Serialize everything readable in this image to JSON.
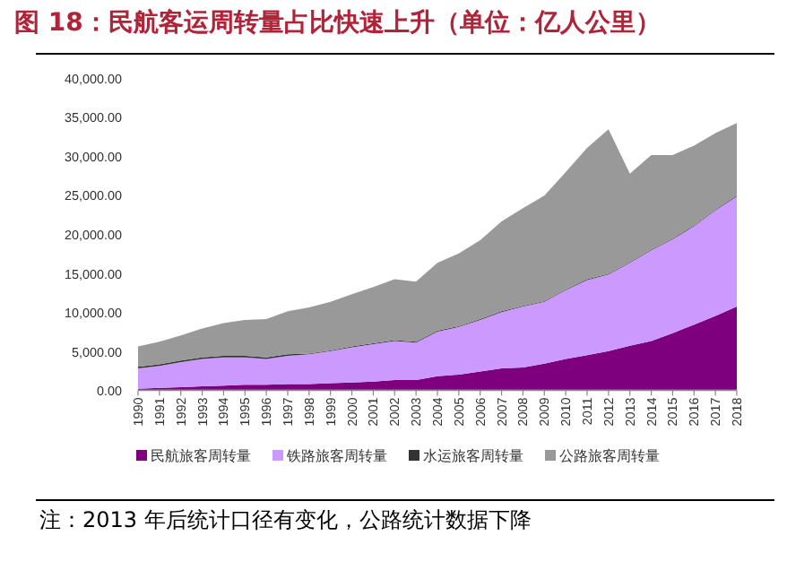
{
  "chart_data": {
    "type": "area",
    "stacked": true,
    "title": "图 18：民航客运周转量占比快速上升（单位：亿人公里）",
    "categories": [
      "1990",
      "1991",
      "1992",
      "1993",
      "1994",
      "1995",
      "1996",
      "1997",
      "1998",
      "1999",
      "2000",
      "2001",
      "2002",
      "2003",
      "2004",
      "2005",
      "2006",
      "2007",
      "2008",
      "2009",
      "2010",
      "2011",
      "2012",
      "2013",
      "2014",
      "2015",
      "2016",
      "2017",
      "2018"
    ],
    "series": [
      {
        "name": "民航旅客周转量",
        "color": "#7f007f",
        "values": [
          200,
          300,
          400,
          500,
          600,
          700,
          700,
          800,
          800,
          900,
          1000,
          1100,
          1300,
          1300,
          1800,
          2000,
          2400,
          2800,
          2900,
          3400,
          4000,
          4500,
          5000,
          5700,
          6300,
          7300,
          8400,
          9500,
          10700
        ]
      },
      {
        "name": "铁路旅客周转量",
        "color": "#cc99ff",
        "values": [
          2600,
          2800,
          3200,
          3500,
          3600,
          3500,
          3300,
          3600,
          3800,
          4100,
          4500,
          4800,
          5000,
          4800,
          5700,
          6100,
          6600,
          7200,
          7800,
          7900,
          8800,
          9600,
          9800,
          10600,
          11600,
          12000,
          12600,
          13500,
          14100
        ]
      },
      {
        "name": "水运旅客周转量",
        "color": "#333333",
        "values": [
          200,
          200,
          200,
          200,
          200,
          200,
          200,
          200,
          100,
          100,
          100,
          100,
          100,
          100,
          100,
          100,
          100,
          100,
          100,
          100,
          100,
          100,
          100,
          100,
          100,
          100,
          100,
          100,
          100
        ]
      },
      {
        "name": "公路旅客周转量",
        "color": "#999999",
        "values": [
          2600,
          2900,
          3200,
          3700,
          4200,
          4600,
          4900,
          5500,
          5900,
          6200,
          6700,
          7200,
          7800,
          7700,
          8700,
          9300,
          10100,
          11500,
          12500,
          13500,
          15000,
          16800,
          18500,
          11300,
          12100,
          10700,
          10200,
          9800,
          9300
        ]
      }
    ],
    "ylim": [
      0,
      40000
    ],
    "yticks": [
      {
        "value": 0,
        "label": "0.00"
      },
      {
        "value": 5000,
        "label": "5,000.00"
      },
      {
        "value": 10000,
        "label": "10,000.00"
      },
      {
        "value": 15000,
        "label": "15,000.00"
      },
      {
        "value": 20000,
        "label": "20,000.00"
      },
      {
        "value": 25000,
        "label": "25,000.00"
      },
      {
        "value": 30000,
        "label": "30,000.00"
      },
      {
        "value": 35000,
        "label": "35,000.00"
      },
      {
        "value": 40000,
        "label": "40,000.00"
      }
    ],
    "legend": "bottom",
    "grid": false,
    "annotations": [
      "注：2013 年后统计口径有变化，公路统计数据下降"
    ]
  }
}
